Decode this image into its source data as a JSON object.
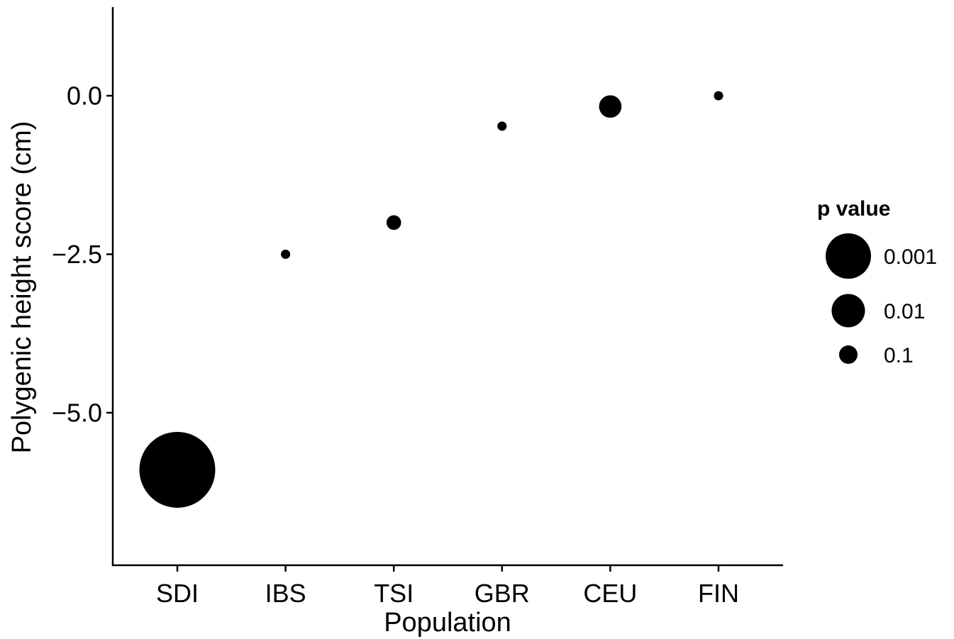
{
  "chart_data": {
    "type": "scatter",
    "xlabel": "Population",
    "ylabel": "Polygenic height score (cm)",
    "categories": [
      "SDI",
      "IBS",
      "TSI",
      "GBR",
      "CEU",
      "FIN"
    ],
    "points": [
      {
        "x": "SDI",
        "y": -5.9,
        "p": 0.001
      },
      {
        "x": "IBS",
        "y": -2.5,
        "p": 0.15
      },
      {
        "x": "TSI",
        "y": -2.0,
        "p": 0.07
      },
      {
        "x": "GBR",
        "y": -0.48,
        "p": 0.15
      },
      {
        "x": "CEU",
        "y": -0.17,
        "p": 0.03
      },
      {
        "x": "FIN",
        "y": 0.0,
        "p": 0.15
      }
    ],
    "yticks": [
      0.0,
      -2.5,
      -5.0
    ],
    "ytick_labels": [
      "0.0",
      "−2.5",
      "−5.0"
    ],
    "ylim": [
      -7.4,
      1.4
    ],
    "grid": false,
    "color": "#000000",
    "legend": {
      "title": "p value",
      "placement": "right",
      "entries": [
        {
          "label": "0.001",
          "p": 0.001
        },
        {
          "label": "0.01",
          "p": 0.01
        },
        {
          "label": "0.1",
          "p": 0.1
        }
      ]
    }
  }
}
